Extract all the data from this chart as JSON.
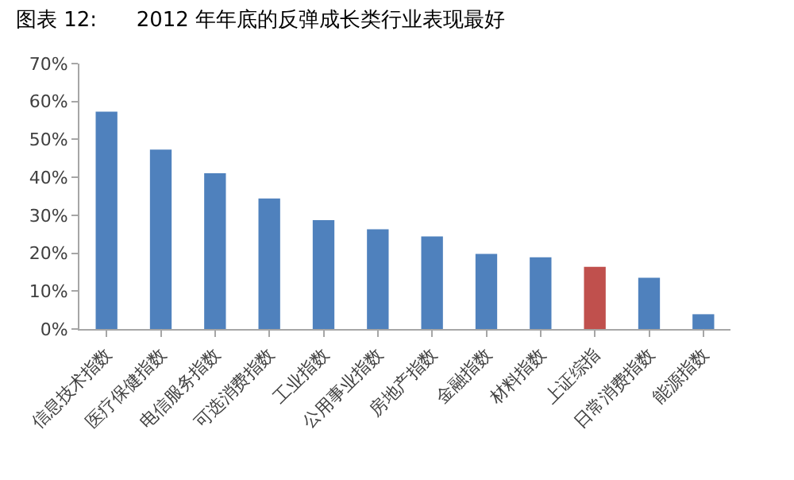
{
  "chart_data": {
    "type": "bar",
    "title": "图表 12:      2012 年年底的反弹成长类行业表现最好",
    "categories": [
      "信息技术指数",
      "医疗保健指数",
      "电信服务指数",
      "可选消费指数",
      "工业指数",
      "公用事业指数",
      "房地产指数",
      "金融指数",
      "材料指数",
      "上证综指",
      "日常消费指数",
      "能源指数"
    ],
    "values": [
      57.3,
      47.3,
      41.1,
      34.4,
      28.7,
      26.3,
      24.4,
      19.8,
      18.9,
      16.4,
      13.5,
      3.9
    ],
    "colors": [
      "#4f81bd",
      "#4f81bd",
      "#4f81bd",
      "#4f81bd",
      "#4f81bd",
      "#4f81bd",
      "#4f81bd",
      "#4f81bd",
      "#4f81bd",
      "#c0504d",
      "#4f81bd",
      "#4f81bd"
    ],
    "ylim": [
      0,
      70
    ],
    "yticks": [
      {
        "value": 0,
        "label": "0%"
      },
      {
        "value": 10,
        "label": "10%"
      },
      {
        "value": 20,
        "label": "20%"
      },
      {
        "value": 30,
        "label": "30%"
      },
      {
        "value": 40,
        "label": "40%"
      },
      {
        "value": 50,
        "label": "50%"
      },
      {
        "value": 60,
        "label": "60%"
      },
      {
        "value": 70,
        "label": "70%"
      }
    ],
    "grid": false,
    "legend": false
  }
}
